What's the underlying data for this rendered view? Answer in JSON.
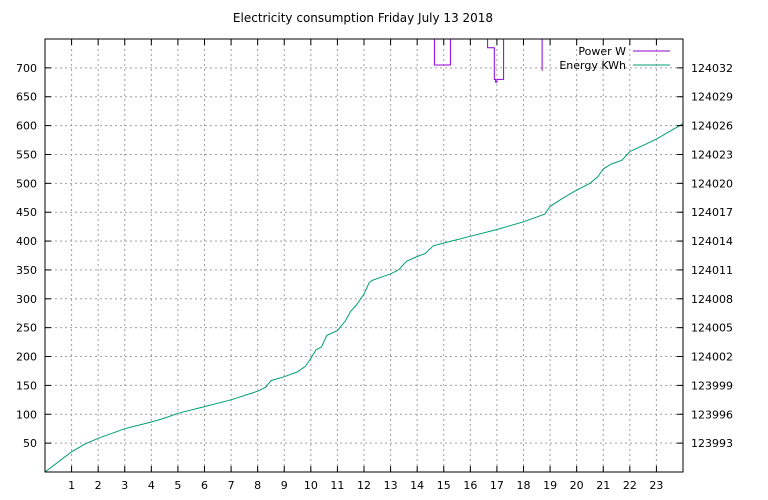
{
  "chart_data": {
    "type": "line",
    "title": "Electricity consumption Friday July 13 2018",
    "xlabel": "",
    "ylabel": "",
    "y2label": "",
    "xlim": [
      0,
      24
    ],
    "ylim": [
      0,
      750
    ],
    "y2lim": [
      123990,
      124035
    ],
    "x_ticks": [
      1,
      2,
      3,
      4,
      5,
      6,
      7,
      8,
      9,
      10,
      11,
      12,
      13,
      14,
      15,
      16,
      17,
      18,
      19,
      20,
      21,
      22,
      23
    ],
    "y_ticks": [
      50,
      100,
      150,
      200,
      250,
      300,
      350,
      400,
      450,
      500,
      550,
      600,
      650,
      700
    ],
    "y2_ticks": [
      123993,
      123996,
      123999,
      124002,
      124005,
      124008,
      124011,
      124014,
      124017,
      124020,
      124023,
      124026,
      124029,
      124032
    ],
    "grid": true,
    "legend_position": "top-right",
    "series": [
      {
        "name": "Power W",
        "color": "#9400d3",
        "axis": "left",
        "type": "step",
        "x": [
          14.65,
          14.65,
          15.25,
          15.25,
          16.65,
          16.65,
          16.9,
          16.9,
          16.95,
          16.95,
          17.0,
          17.0,
          17.25,
          17.25,
          18.7,
          18.7
        ],
        "y": [
          750,
          705,
          705,
          750,
          750,
          735,
          735,
          680,
          680,
          675,
          675,
          680,
          680,
          750,
          750,
          695
        ]
      },
      {
        "name": "Energy KWh",
        "color": "#009e73",
        "axis": "right",
        "x": [
          0,
          1,
          1.5,
          2,
          3,
          4,
          4.5,
          5,
          6,
          7,
          8,
          8.3,
          8.5,
          9,
          9.5,
          9.8,
          10,
          10.2,
          10.4,
          10.6,
          11,
          11.3,
          11.5,
          11.7,
          12,
          12.2,
          12.3,
          13,
          13.3,
          13.6,
          14,
          14.3,
          14.6,
          15,
          16,
          17,
          18,
          18.8,
          19,
          19.5,
          20,
          20.5,
          20.8,
          21,
          21.3,
          21.7,
          22,
          23,
          24
        ],
        "y": [
          123990,
          123992.1,
          123992.9,
          123993.5,
          123994.5,
          123995.2,
          123995.6,
          123996.1,
          123996.8,
          123997.5,
          123998.4,
          123998.8,
          123999.5,
          123999.9,
          124000.4,
          124001.0,
          124001.8,
          124002.7,
          124003.0,
          124004.2,
          124004.7,
          124005.7,
          124006.7,
          124007.3,
          124008.5,
          124009.7,
          124009.9,
          124010.6,
          124011.0,
          124011.9,
          124012.4,
          124012.7,
          124013.5,
          124013.8,
          124014.5,
          124015.2,
          124016.0,
          124016.8,
          124017.6,
          124018.5,
          124019.3,
          124020.0,
          124020.7,
          124021.5,
          124022.0,
          124022.4,
          124023.3,
          124024.6,
          124026.2
        ]
      }
    ]
  }
}
